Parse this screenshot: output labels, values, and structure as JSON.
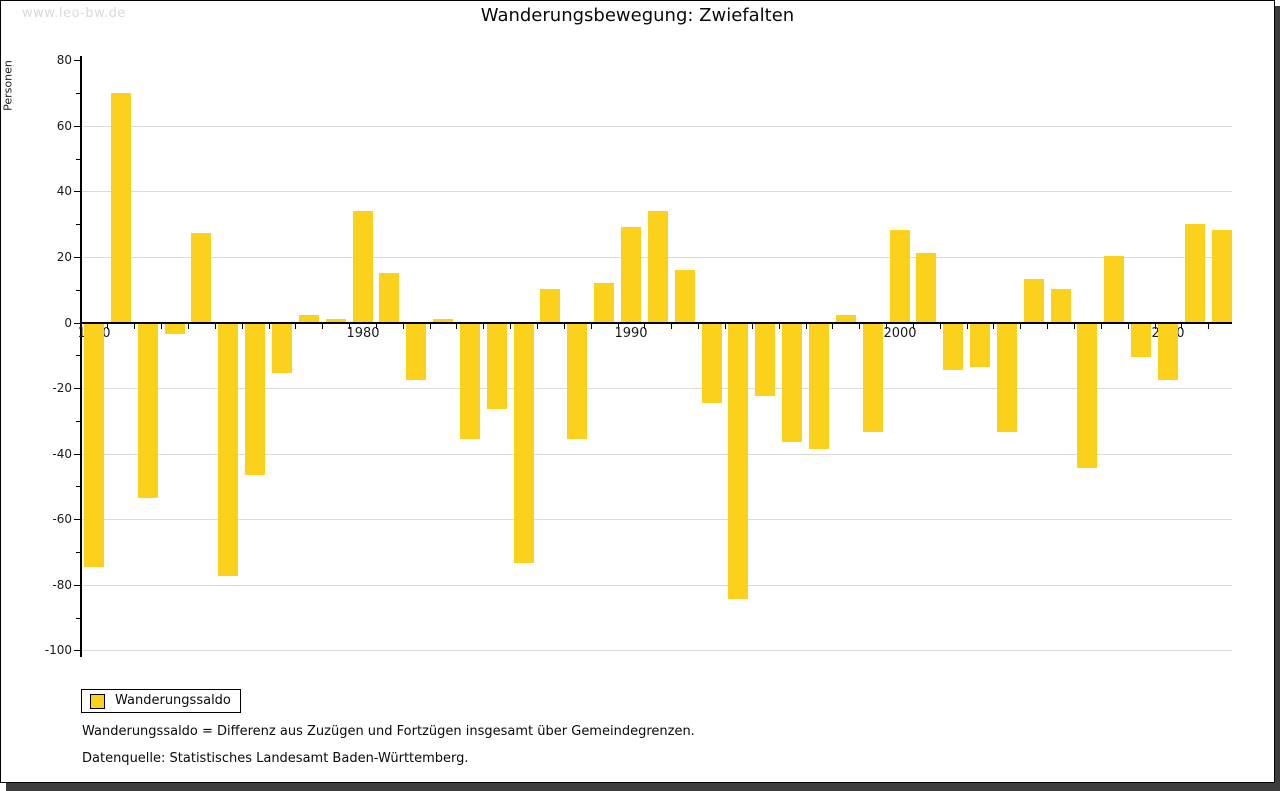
{
  "watermark": "www.leo-bw.de",
  "title": "Wanderungsbewegung: Zwiefalten",
  "legend": {
    "label": "Wanderungssaldo"
  },
  "footnotes": {
    "line1": "Wanderungssaldo = Differenz aus Zuzügen und Fortzügen insgesamt über Gemeindegrenzen.",
    "line2": "Datenquelle: Statistisches Landesamt Baden-Württemberg."
  },
  "colors": {
    "bar": "#fcd11c",
    "grid": "#dadada",
    "axis": "#000000",
    "shadow": "#3c3c3c",
    "watermark": "#d9d9d9"
  },
  "chart_data": {
    "type": "bar",
    "title": "Wanderungsbewegung: Zwiefalten",
    "ylabel": "Personen",
    "xlabel": "",
    "series_name": "Wanderungssaldo",
    "ylim": [
      -100,
      80
    ],
    "ytick_major_step": 20,
    "ytick_minor_step": 10,
    "grid": true,
    "legend_position": "bottom-left",
    "xtick_labels": [
      1970,
      1980,
      1990,
      2000,
      2010
    ],
    "x": [
      1970,
      1971,
      1972,
      1973,
      1974,
      1975,
      1976,
      1977,
      1978,
      1979,
      1980,
      1981,
      1982,
      1983,
      1984,
      1985,
      1986,
      1987,
      1988,
      1989,
      1990,
      1991,
      1992,
      1993,
      1994,
      1995,
      1996,
      1997,
      1998,
      1999,
      2000,
      2001,
      2002,
      2003,
      2004,
      2005,
      2006,
      2007,
      2008,
      2009,
      2010,
      2011,
      2012
    ],
    "values": [
      -74,
      70,
      -53,
      -3,
      27,
      -77,
      -46,
      -15,
      2,
      1,
      34,
      15,
      -17,
      1,
      -35,
      -26,
      -73,
      10,
      -35,
      12,
      29,
      34,
      16,
      -24,
      -84,
      -22,
      -36,
      -38,
      2,
      -33,
      28,
      21,
      -14,
      -13,
      -33,
      13,
      10,
      -44,
      20,
      -10,
      -17,
      30,
      28
    ]
  }
}
